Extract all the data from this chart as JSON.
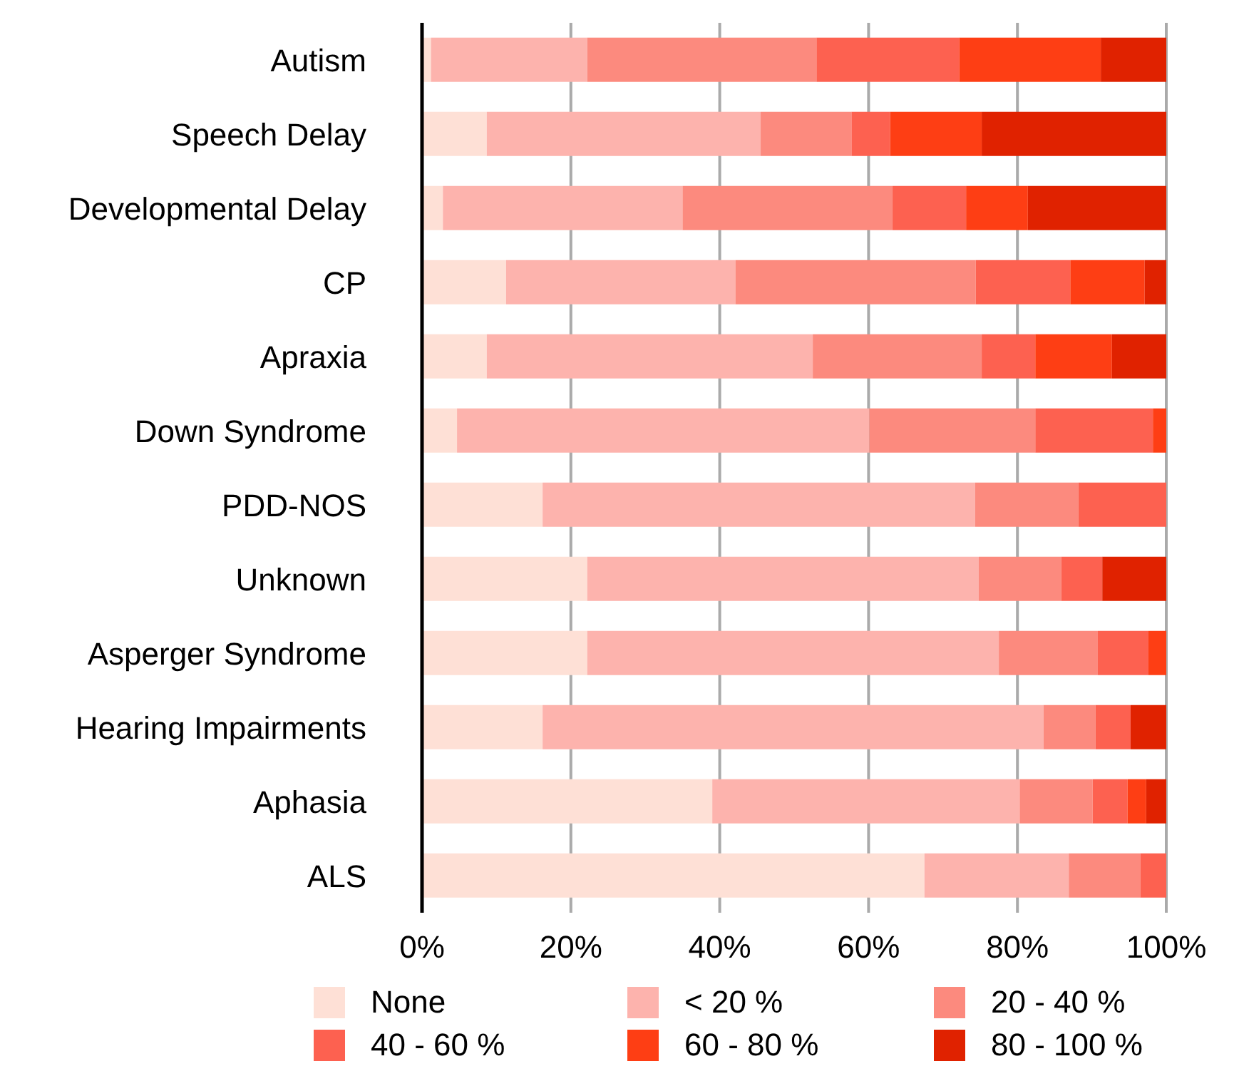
{
  "chart_data": {
    "type": "bar",
    "orientation": "horizontal",
    "stacked": true,
    "categories": [
      "Autism",
      "Speech Delay",
      "Developmental Delay",
      "CP",
      "Apraxia",
      "Down Syndrome",
      "PDD-NOS",
      "Unknown",
      "Asperger Syndrome",
      "Hearing Impairments",
      "Aphasia",
      "ALS"
    ],
    "series": [
      {
        "name": "None",
        "color": "#fee0d6",
        "values": [
          1.2,
          8.7,
          2.8,
          11.3,
          8.7,
          4.7,
          16.2,
          22.2,
          22.2,
          16.2,
          39.0,
          67.5
        ]
      },
      {
        "name": "< 20 %",
        "color": "#fdb3ad",
        "values": [
          21.0,
          36.8,
          32.2,
          30.8,
          43.8,
          55.4,
          58.1,
          52.6,
          55.3,
          67.3,
          41.3,
          19.4
        ]
      },
      {
        "name": "20 - 40 %",
        "color": "#fc8a7e",
        "values": [
          30.8,
          12.2,
          28.2,
          32.3,
          22.7,
          22.3,
          13.9,
          11.1,
          13.3,
          7.0,
          9.8,
          9.6
        ]
      },
      {
        "name": "40 - 60 %",
        "color": "#fd6150",
        "values": [
          19.2,
          5.2,
          9.9,
          12.7,
          7.2,
          15.8,
          11.8,
          5.5,
          6.8,
          4.7,
          4.7,
          3.5
        ]
      },
      {
        "name": "60 - 80 %",
        "color": "#fe3e14",
        "values": [
          19.0,
          12.3,
          8.3,
          10.0,
          10.3,
          1.8,
          0,
          0,
          2.4,
          0,
          2.5,
          0
        ]
      },
      {
        "name": "80 - 100 %",
        "color": "#e02200",
        "values": [
          8.8,
          24.8,
          18.6,
          2.9,
          7.3,
          0,
          0,
          8.6,
          0,
          4.8,
          2.7,
          0
        ]
      }
    ],
    "xlim": [
      0,
      100
    ],
    "xticks": [
      {
        "value": 0,
        "label": "0%"
      },
      {
        "value": 20,
        "label": "20%"
      },
      {
        "value": 40,
        "label": "40%"
      },
      {
        "value": 60,
        "label": "60%"
      },
      {
        "value": 80,
        "label": "80%"
      },
      {
        "value": 100,
        "label": "100%"
      }
    ],
    "grid": "x",
    "legend": "bottom"
  }
}
